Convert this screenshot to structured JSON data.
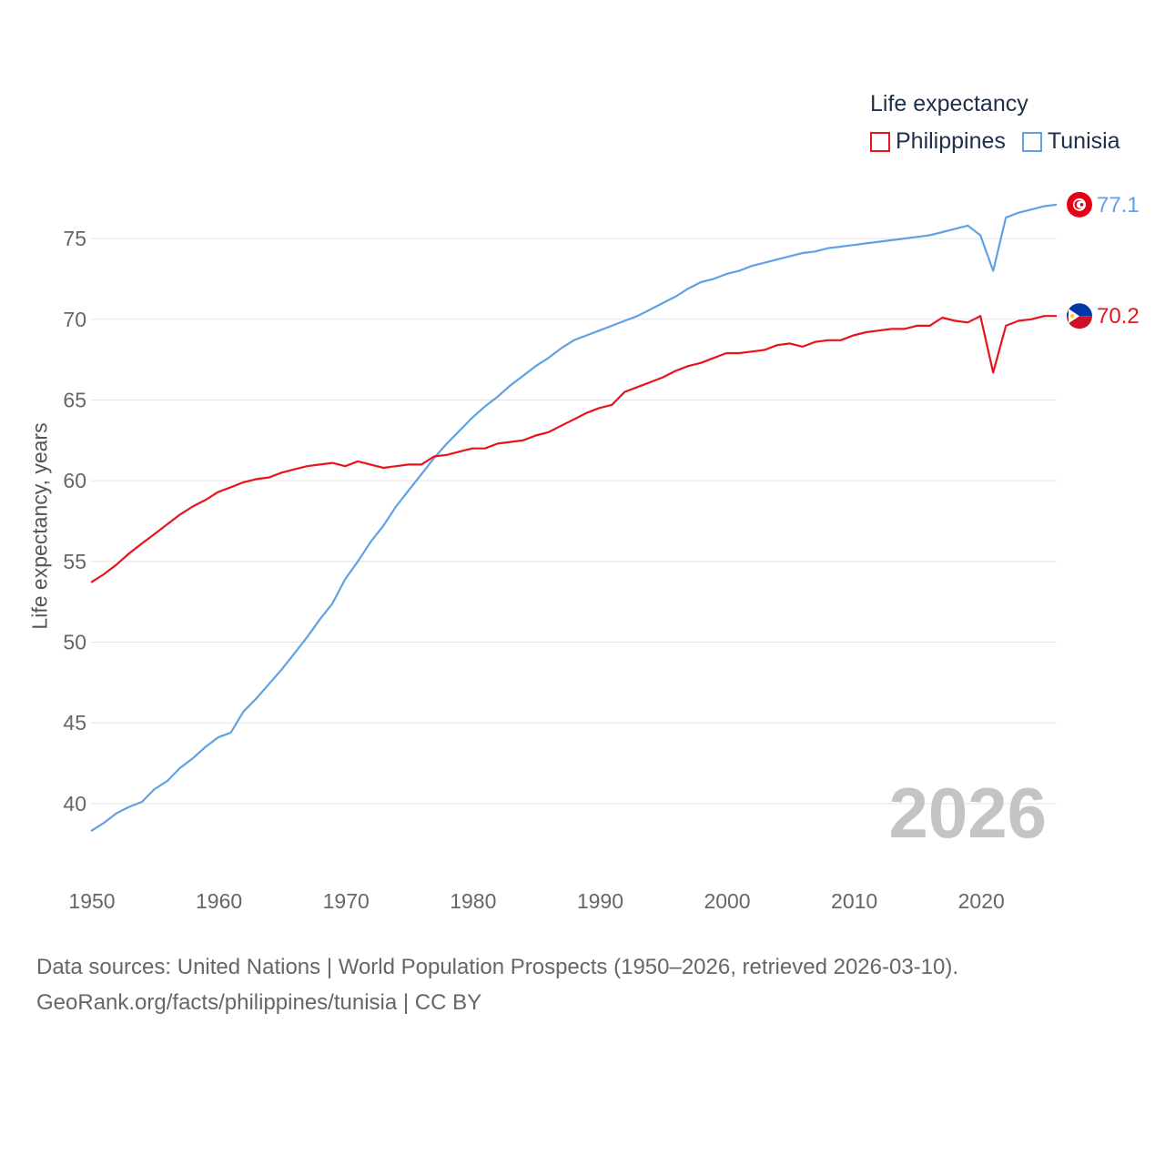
{
  "legend": {
    "title": "Life expectancy",
    "items": [
      {
        "label": "Philippines",
        "color": "#e8131b"
      },
      {
        "label": "Tunisia",
        "color": "#5ea2e4"
      }
    ]
  },
  "year_label": "2026",
  "source": {
    "line1": "Data sources: United Nations | World Population Prospects (1950–2026, retrieved 2026-03-10).",
    "line2": "GeoRank.org/facts/philippines/tunisia | CC BY"
  },
  "chart_data": {
    "type": "line",
    "title": "Life expectancy",
    "xlabel": "",
    "ylabel": "Life expectancy, years",
    "xlim": [
      1950,
      2026
    ],
    "ylim": [
      36.5,
      78.5
    ],
    "yticks": [
      40,
      45,
      50,
      55,
      60,
      65,
      70,
      75
    ],
    "xticks": [
      1950,
      1960,
      1970,
      1980,
      1990,
      2000,
      2010,
      2020
    ],
    "grid": true,
    "legend_position": "top-right",
    "x": [
      1950,
      1951,
      1952,
      1953,
      1954,
      1955,
      1956,
      1957,
      1958,
      1959,
      1960,
      1961,
      1962,
      1963,
      1964,
      1965,
      1966,
      1967,
      1968,
      1969,
      1970,
      1971,
      1972,
      1973,
      1974,
      1975,
      1976,
      1977,
      1978,
      1979,
      1980,
      1981,
      1982,
      1983,
      1984,
      1985,
      1986,
      1987,
      1988,
      1989,
      1990,
      1991,
      1992,
      1993,
      1994,
      1995,
      1996,
      1997,
      1998,
      1999,
      2000,
      2001,
      2002,
      2003,
      2004,
      2005,
      2006,
      2007,
      2008,
      2009,
      2010,
      2011,
      2012,
      2013,
      2014,
      2015,
      2016,
      2017,
      2018,
      2019,
      2020,
      2021,
      2022,
      2023,
      2024,
      2025,
      2026
    ],
    "series": [
      {
        "name": "Philippines",
        "color": "#e8131b",
        "end_label": "70.2",
        "flag": "philippines-flag",
        "values": [
          53.7,
          54.2,
          54.8,
          55.5,
          56.1,
          56.7,
          57.3,
          57.9,
          58.4,
          58.8,
          59.3,
          59.6,
          59.9,
          60.1,
          60.2,
          60.5,
          60.7,
          60.9,
          61.0,
          61.1,
          60.9,
          61.2,
          61.0,
          60.8,
          60.9,
          61.0,
          61.0,
          61.5,
          61.6,
          61.8,
          62.0,
          62.0,
          62.3,
          62.4,
          62.5,
          62.8,
          63.0,
          63.4,
          63.8,
          64.2,
          64.5,
          64.7,
          65.5,
          65.8,
          66.1,
          66.4,
          66.8,
          67.1,
          67.3,
          67.6,
          67.9,
          67.9,
          68.0,
          68.1,
          68.4,
          68.5,
          68.3,
          68.6,
          68.7,
          68.7,
          69.0,
          69.2,
          69.3,
          69.4,
          69.4,
          69.6,
          69.6,
          70.1,
          69.9,
          69.8,
          70.2,
          66.7,
          69.6,
          69.9,
          70.0,
          70.2,
          70.2
        ]
      },
      {
        "name": "Tunisia",
        "color": "#5ea2e4",
        "end_label": "77.1",
        "flag": "tunisia-flag",
        "values": [
          38.3,
          38.8,
          39.4,
          39.8,
          40.1,
          40.9,
          41.4,
          42.2,
          42.8,
          43.5,
          44.1,
          44.4,
          45.7,
          46.5,
          47.4,
          48.3,
          49.3,
          50.3,
          51.4,
          52.4,
          53.9,
          55.0,
          56.2,
          57.2,
          58.4,
          59.4,
          60.4,
          61.4,
          62.3,
          63.1,
          63.9,
          64.6,
          65.2,
          65.9,
          66.5,
          67.1,
          67.6,
          68.2,
          68.7,
          69.0,
          69.3,
          69.6,
          69.9,
          70.2,
          70.6,
          71.0,
          71.4,
          71.9,
          72.3,
          72.5,
          72.8,
          73.0,
          73.3,
          73.5,
          73.7,
          73.9,
          74.1,
          74.2,
          74.4,
          74.5,
          74.6,
          74.7,
          74.8,
          74.9,
          75.0,
          75.1,
          75.2,
          75.4,
          75.6,
          75.8,
          75.2,
          73.0,
          76.3,
          76.6,
          76.8,
          77.0,
          77.1
        ]
      }
    ]
  }
}
